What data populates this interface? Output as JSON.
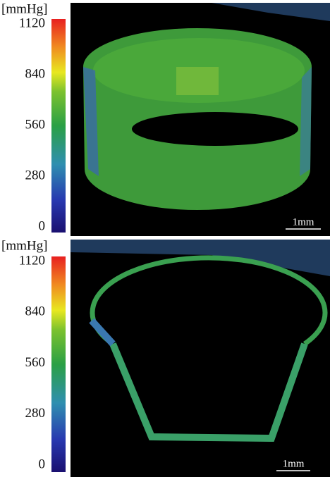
{
  "panels": [
    {
      "unit": "[mmHg]",
      "ticks": [
        1120,
        840,
        560,
        280,
        0
      ],
      "scale_bar": "1mm"
    },
    {
      "unit": "[mmHg]",
      "ticks": [
        1120,
        840,
        560,
        280,
        0
      ],
      "scale_bar": "1mm"
    }
  ]
}
